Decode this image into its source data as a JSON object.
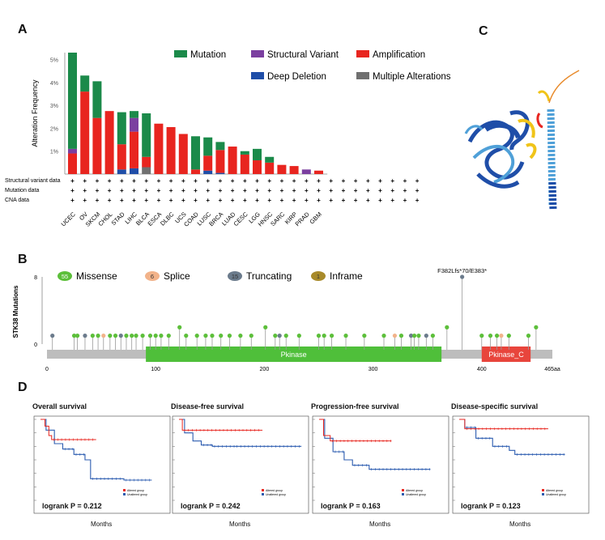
{
  "panels": {
    "a": "A",
    "b": "B",
    "c": "C",
    "d": "D"
  },
  "colors": {
    "mutation": "#1b8a4a",
    "structural_variant": "#7b3fa0",
    "amplification": "#e8251f",
    "deep_deletion": "#1f4ea8",
    "multiple": "#707070",
    "missense": "#5cbf3a",
    "splice": "#f2b38a",
    "truncating": "#6b7b8c",
    "inframe": "#a88a2a",
    "pkinase": "#4fbf3a",
    "pkinase_c": "#e8453c",
    "altered": "#e8251f",
    "unaltered": "#2c5cb0"
  },
  "chart_data": [
    {
      "type": "bar",
      "panel": "A",
      "ylabel": "Alteration Frequency",
      "yticks": [
        "1%",
        "2%",
        "3%",
        "4%",
        "5%"
      ],
      "ylim": [
        0,
        5.3
      ],
      "legend": [
        "Mutation",
        "Structural Variant",
        "Amplification",
        "Deep Deletion",
        "Multiple Alterations"
      ],
      "categories": [
        "UCEC",
        "OV",
        "SKCM",
        "CHOL",
        "STAD",
        "LIHC",
        "BLCA",
        "ESCA",
        "DLBC",
        "UCS",
        "COAD",
        "LUSC",
        "BRCA",
        "LUAD",
        "CESC",
        "LGG",
        "HNSC",
        "SARC",
        "KIRP",
        "PRAD",
        "GBM"
      ],
      "series": [
        {
          "name": "Deep Deletion",
          "values": [
            0,
            0,
            0,
            0,
            0.2,
            0.25,
            0,
            0,
            0,
            0,
            0,
            0.15,
            0.05,
            0,
            0,
            0,
            0,
            0,
            0,
            0,
            0
          ]
        },
        {
          "name": "Multiple Alterations",
          "values": [
            0,
            0,
            0,
            0,
            0,
            0,
            0.3,
            0,
            0,
            0,
            0,
            0,
            0,
            0,
            0,
            0,
            0,
            0,
            0,
            0,
            0
          ]
        },
        {
          "name": "Amplification",
          "values": [
            0.9,
            3.6,
            2.45,
            2.75,
            1.1,
            1.6,
            0.45,
            2.2,
            2.05,
            1.75,
            0.2,
            0.65,
            1.0,
            1.2,
            0.85,
            0.6,
            0.5,
            0.4,
            0.35,
            0,
            0.15
          ]
        },
        {
          "name": "Structural Variant",
          "values": [
            0.2,
            0,
            0,
            0,
            0,
            0.6,
            0,
            0,
            0,
            0,
            0,
            0,
            0,
            0,
            0,
            0,
            0,
            0,
            0,
            0.2,
            0
          ]
        },
        {
          "name": "Mutation",
          "values": [
            4.2,
            0.7,
            1.6,
            0,
            1.4,
            0.3,
            1.9,
            0,
            0,
            0,
            1.45,
            0.8,
            0.35,
            0,
            0.15,
            0.5,
            0.25,
            0,
            0,
            0,
            0
          ]
        }
      ],
      "row_labels": [
        "Structural variant data",
        "Mutation data",
        "CNA data"
      ]
    },
    {
      "type": "lollipop",
      "panel": "B",
      "ylabel": "STK38 Mutations",
      "yticks": [
        "0",
        "8"
      ],
      "ylim": [
        0,
        8
      ],
      "xticks": [
        "0",
        "100",
        "200",
        "300",
        "400",
        "465aa"
      ],
      "x_range": [
        0,
        465
      ],
      "legend": [
        {
          "count": "55",
          "label": "Missense"
        },
        {
          "count": "6",
          "label": "Splice"
        },
        {
          "count": "15",
          "label": "Truncating"
        },
        {
          "count": "1",
          "label": "Inframe"
        }
      ],
      "annotation": "F382Lfs*70/E383*",
      "domains": [
        {
          "label": "Pkinase",
          "start": 91,
          "end": 363
        },
        {
          "label": "Pkinase_C",
          "start": 400,
          "end": 445
        }
      ],
      "mutations": [
        {
          "x": 5,
          "y": 1,
          "t": "truncating"
        },
        {
          "x": 25,
          "y": 1,
          "t": "missense"
        },
        {
          "x": 28,
          "y": 1,
          "t": "missense"
        },
        {
          "x": 35,
          "y": 1,
          "t": "truncating"
        },
        {
          "x": 42,
          "y": 1,
          "t": "missense"
        },
        {
          "x": 47,
          "y": 1,
          "t": "missense"
        },
        {
          "x": 52,
          "y": 1,
          "t": "splice"
        },
        {
          "x": 58,
          "y": 1,
          "t": "missense"
        },
        {
          "x": 63,
          "y": 1,
          "t": "missense"
        },
        {
          "x": 68,
          "y": 1,
          "t": "truncating"
        },
        {
          "x": 73,
          "y": 1,
          "t": "missense"
        },
        {
          "x": 78,
          "y": 1,
          "t": "missense"
        },
        {
          "x": 82,
          "y": 1,
          "t": "missense"
        },
        {
          "x": 88,
          "y": 1,
          "t": "missense"
        },
        {
          "x": 95,
          "y": 1,
          "t": "missense"
        },
        {
          "x": 100,
          "y": 1,
          "t": "missense"
        },
        {
          "x": 105,
          "y": 1,
          "t": "missense"
        },
        {
          "x": 112,
          "y": 1,
          "t": "missense"
        },
        {
          "x": 122,
          "y": 2,
          "t": "missense"
        },
        {
          "x": 128,
          "y": 1,
          "t": "missense"
        },
        {
          "x": 138,
          "y": 1,
          "t": "missense"
        },
        {
          "x": 146,
          "y": 1,
          "t": "missense"
        },
        {
          "x": 152,
          "y": 1,
          "t": "missense"
        },
        {
          "x": 160,
          "y": 1,
          "t": "missense"
        },
        {
          "x": 168,
          "y": 1,
          "t": "missense"
        },
        {
          "x": 178,
          "y": 1,
          "t": "missense"
        },
        {
          "x": 188,
          "y": 1,
          "t": "missense"
        },
        {
          "x": 201,
          "y": 2,
          "t": "missense"
        },
        {
          "x": 210,
          "y": 1,
          "t": "missense"
        },
        {
          "x": 214,
          "y": 1,
          "t": "truncating"
        },
        {
          "x": 220,
          "y": 1,
          "t": "missense"
        },
        {
          "x": 232,
          "y": 1,
          "t": "missense"
        },
        {
          "x": 250,
          "y": 1,
          "t": "missense"
        },
        {
          "x": 255,
          "y": 1,
          "t": "missense"
        },
        {
          "x": 262,
          "y": 1,
          "t": "missense"
        },
        {
          "x": 275,
          "y": 1,
          "t": "missense"
        },
        {
          "x": 292,
          "y": 1,
          "t": "missense"
        },
        {
          "x": 310,
          "y": 1,
          "t": "missense"
        },
        {
          "x": 320,
          "y": 1,
          "t": "splice"
        },
        {
          "x": 326,
          "y": 1,
          "t": "missense"
        },
        {
          "x": 335,
          "y": 1,
          "t": "truncating"
        },
        {
          "x": 338,
          "y": 1,
          "t": "missense"
        },
        {
          "x": 342,
          "y": 1,
          "t": "missense"
        },
        {
          "x": 349,
          "y": 1,
          "t": "truncating"
        },
        {
          "x": 355,
          "y": 1,
          "t": "missense"
        },
        {
          "x": 368,
          "y": 2,
          "t": "missense"
        },
        {
          "x": 382,
          "y": 8,
          "t": "truncating"
        },
        {
          "x": 400,
          "y": 1,
          "t": "missense"
        },
        {
          "x": 408,
          "y": 1,
          "t": "missense"
        },
        {
          "x": 414,
          "y": 1,
          "t": "missense"
        },
        {
          "x": 418,
          "y": 1,
          "t": "splice"
        },
        {
          "x": 425,
          "y": 1,
          "t": "missense"
        },
        {
          "x": 443,
          "y": 1,
          "t": "missense"
        },
        {
          "x": 450,
          "y": 2,
          "t": "missense"
        }
      ]
    },
    {
      "type": "line",
      "panel": "D",
      "subtype": "kaplan-meier",
      "xlabel": "Months",
      "legend": [
        "Altered group",
        "Unaltered group"
      ],
      "plots": [
        {
          "title": "Overall survival",
          "p": "logrank P = 0.212",
          "altered": [
            [
              0,
              100
            ],
            [
              8,
              95
            ],
            [
              15,
              88
            ],
            [
              20,
              85
            ],
            [
              100,
              85
            ]
          ],
          "unaltered": [
            [
              0,
              100
            ],
            [
              10,
              92
            ],
            [
              25,
              82
            ],
            [
              40,
              78
            ],
            [
              60,
              74
            ],
            [
              80,
              70
            ],
            [
              90,
              56
            ],
            [
              150,
              55
            ],
            [
              200,
              55
            ]
          ]
        },
        {
          "title": "Disease-free survival",
          "p": "logrank P = 0.242",
          "altered": [
            [
              0,
              100
            ],
            [
              6,
              92
            ],
            [
              150,
              92
            ]
          ],
          "unaltered": [
            [
              0,
              100
            ],
            [
              10,
              90
            ],
            [
              25,
              84
            ],
            [
              40,
              81
            ],
            [
              60,
              80
            ],
            [
              100,
              80
            ],
            [
              220,
              80
            ]
          ]
        },
        {
          "title": "Progression-free survival",
          "p": "logrank P = 0.163",
          "altered": [
            [
              0,
              100
            ],
            [
              8,
              88
            ],
            [
              20,
              84
            ],
            [
              130,
              84
            ]
          ],
          "unaltered": [
            [
              0,
              100
            ],
            [
              10,
              86
            ],
            [
              25,
              76
            ],
            [
              45,
              70
            ],
            [
              60,
              66
            ],
            [
              90,
              63
            ],
            [
              200,
              63
            ]
          ]
        },
        {
          "title": "Disease-specific survival",
          "p": "logrank P = 0.123",
          "altered": [
            [
              0,
              100
            ],
            [
              10,
              93
            ],
            [
              160,
              93
            ]
          ],
          "unaltered": [
            [
              0,
              100
            ],
            [
              10,
              94
            ],
            [
              30,
              86
            ],
            [
              60,
              80
            ],
            [
              90,
              77
            ],
            [
              100,
              74
            ],
            [
              190,
              74
            ]
          ]
        }
      ]
    }
  ]
}
